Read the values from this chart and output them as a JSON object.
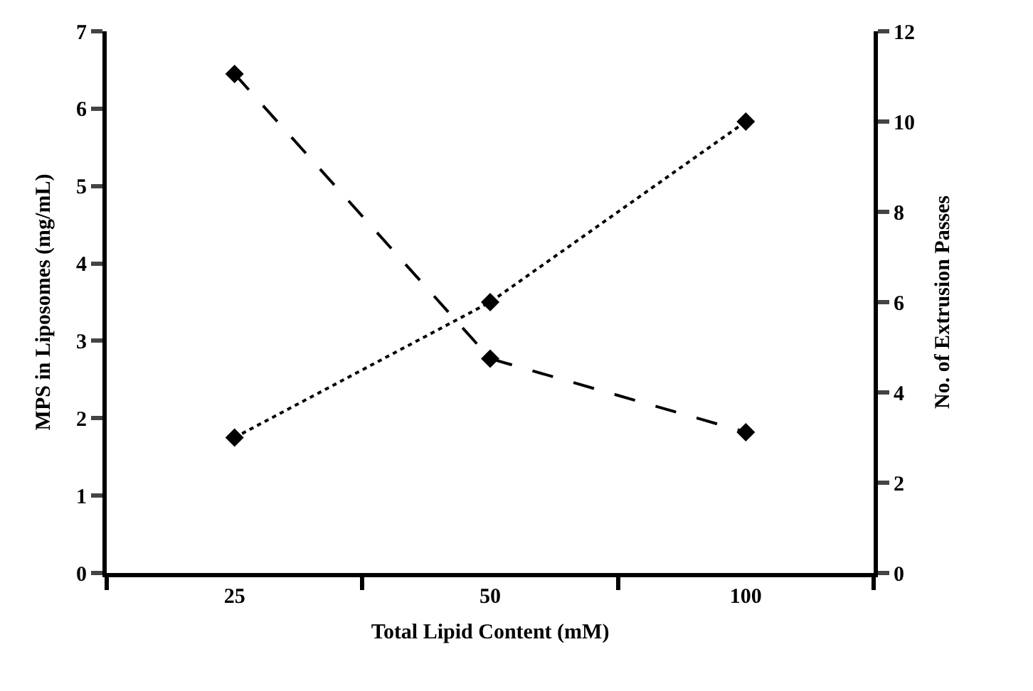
{
  "chart_data": {
    "type": "line",
    "xlabel": "Total Lipid Content (mM)",
    "ylabel": "MPS in Liposomes (mg/mL)",
    "y2label": "No. of Extrusion Passes",
    "categories": [
      "25",
      "50",
      "100"
    ],
    "series": [
      {
        "color": "#000000",
        "line_style": "dashed",
        "values": [
          6.45,
          2.77,
          1.82
        ]
      },
      {
        "color": "#000000",
        "line_style": "dotted",
        "axis": "y2",
        "values": [
          3,
          6,
          10
        ]
      }
    ],
    "ylim": [
      0,
      7
    ],
    "yticks": [
      0,
      1,
      2,
      3,
      4,
      5,
      6,
      7
    ],
    "y2lim": [
      0,
      12
    ],
    "y2ticks": [
      0,
      2,
      4,
      6,
      8,
      10,
      12
    ],
    "marker": "diamond"
  }
}
